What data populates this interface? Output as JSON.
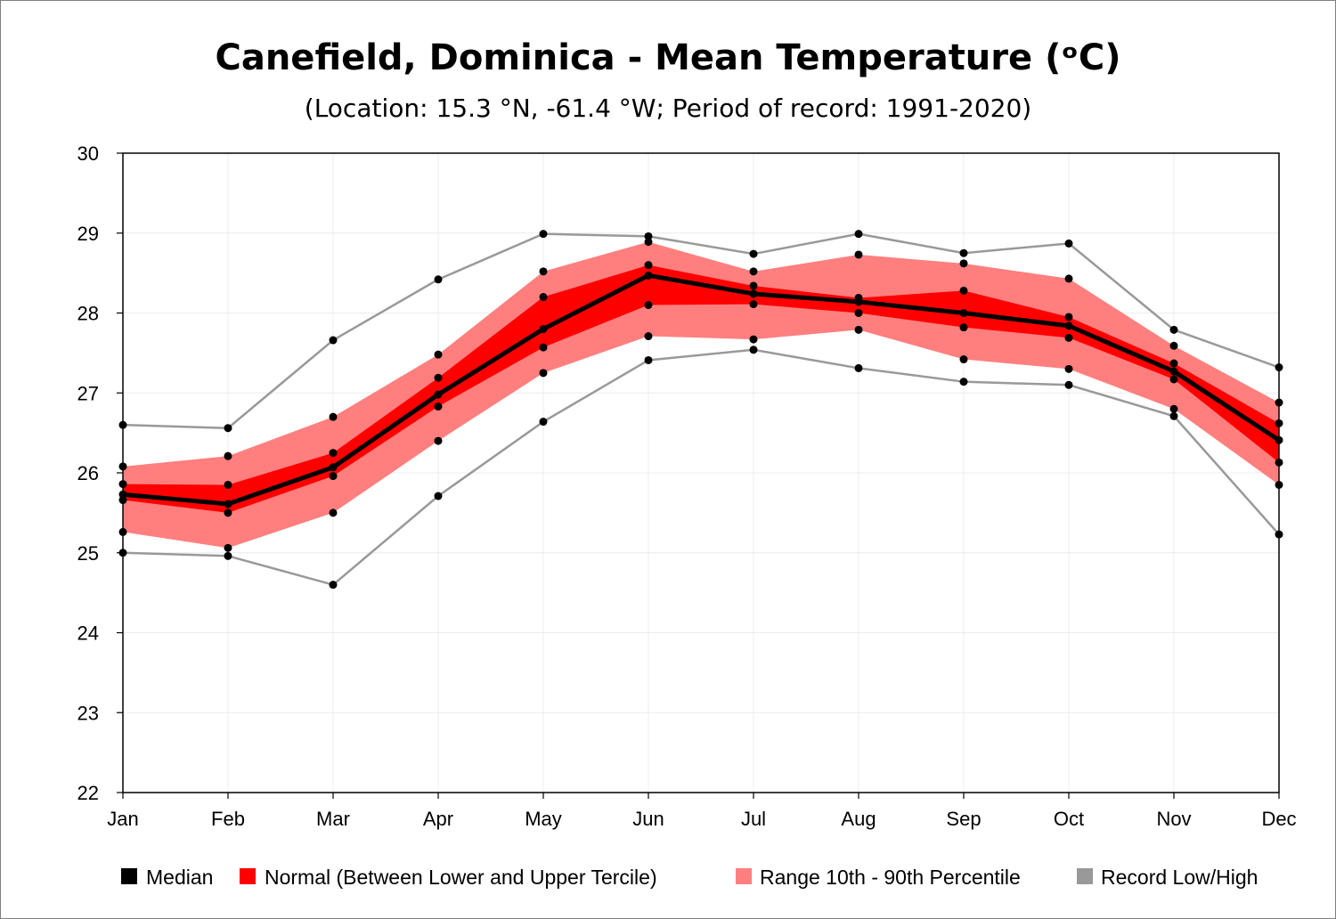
{
  "chart_data": {
    "type": "line",
    "title": "Canefield, Dominica - Mean Temperature (ᵒC)",
    "subtitle": "(Location: 15.3 °N, -61.4 °W; Period of record: 1991-2020)",
    "categories": [
      "Jan",
      "Feb",
      "Mar",
      "Apr",
      "May",
      "Jun",
      "Jul",
      "Aug",
      "Sep",
      "Oct",
      "Nov",
      "Dec"
    ],
    "ylim": [
      22,
      30
    ],
    "yticks": [
      "22",
      "23",
      "24",
      "25",
      "26",
      "27",
      "28",
      "29",
      "30"
    ],
    "grid": true,
    "legend_position": "bottom",
    "series": [
      {
        "name": "Median",
        "color": "#000000",
        "values": [
          25.73,
          25.61,
          26.07,
          26.98,
          27.8,
          28.47,
          28.24,
          28.14,
          28.0,
          27.84,
          27.27,
          26.41
        ]
      },
      {
        "name": "Normal (Between Lower and Upper Tercile)",
        "color": "#ff0000",
        "kind": "band",
        "lower": [
          25.66,
          25.5,
          25.96,
          26.83,
          27.57,
          28.1,
          28.11,
          28.0,
          27.82,
          27.69,
          27.17,
          26.13
        ],
        "upper": [
          25.86,
          25.85,
          26.25,
          27.19,
          28.2,
          28.6,
          28.34,
          28.19,
          28.28,
          27.95,
          27.37,
          26.62
        ]
      },
      {
        "name": "Range 10th - 90th Percentile",
        "color": "#ff7f7f",
        "kind": "band",
        "lower": [
          25.26,
          25.06,
          25.5,
          26.4,
          27.25,
          27.71,
          27.67,
          27.79,
          27.42,
          27.3,
          26.8,
          25.85
        ],
        "upper": [
          26.08,
          26.21,
          26.7,
          27.48,
          28.52,
          28.89,
          28.52,
          28.73,
          28.62,
          28.43,
          27.59,
          26.88
        ]
      },
      {
        "name": "Record Low/High",
        "color": "#999999",
        "kind": "band_lines",
        "lower": [
          25.0,
          24.96,
          24.6,
          25.71,
          26.64,
          27.41,
          27.54,
          27.31,
          27.14,
          27.1,
          26.71,
          25.23
        ],
        "upper": [
          26.6,
          26.56,
          27.66,
          28.42,
          28.99,
          28.96,
          28.74,
          28.99,
          28.75,
          28.87,
          27.79,
          27.32
        ]
      }
    ]
  }
}
